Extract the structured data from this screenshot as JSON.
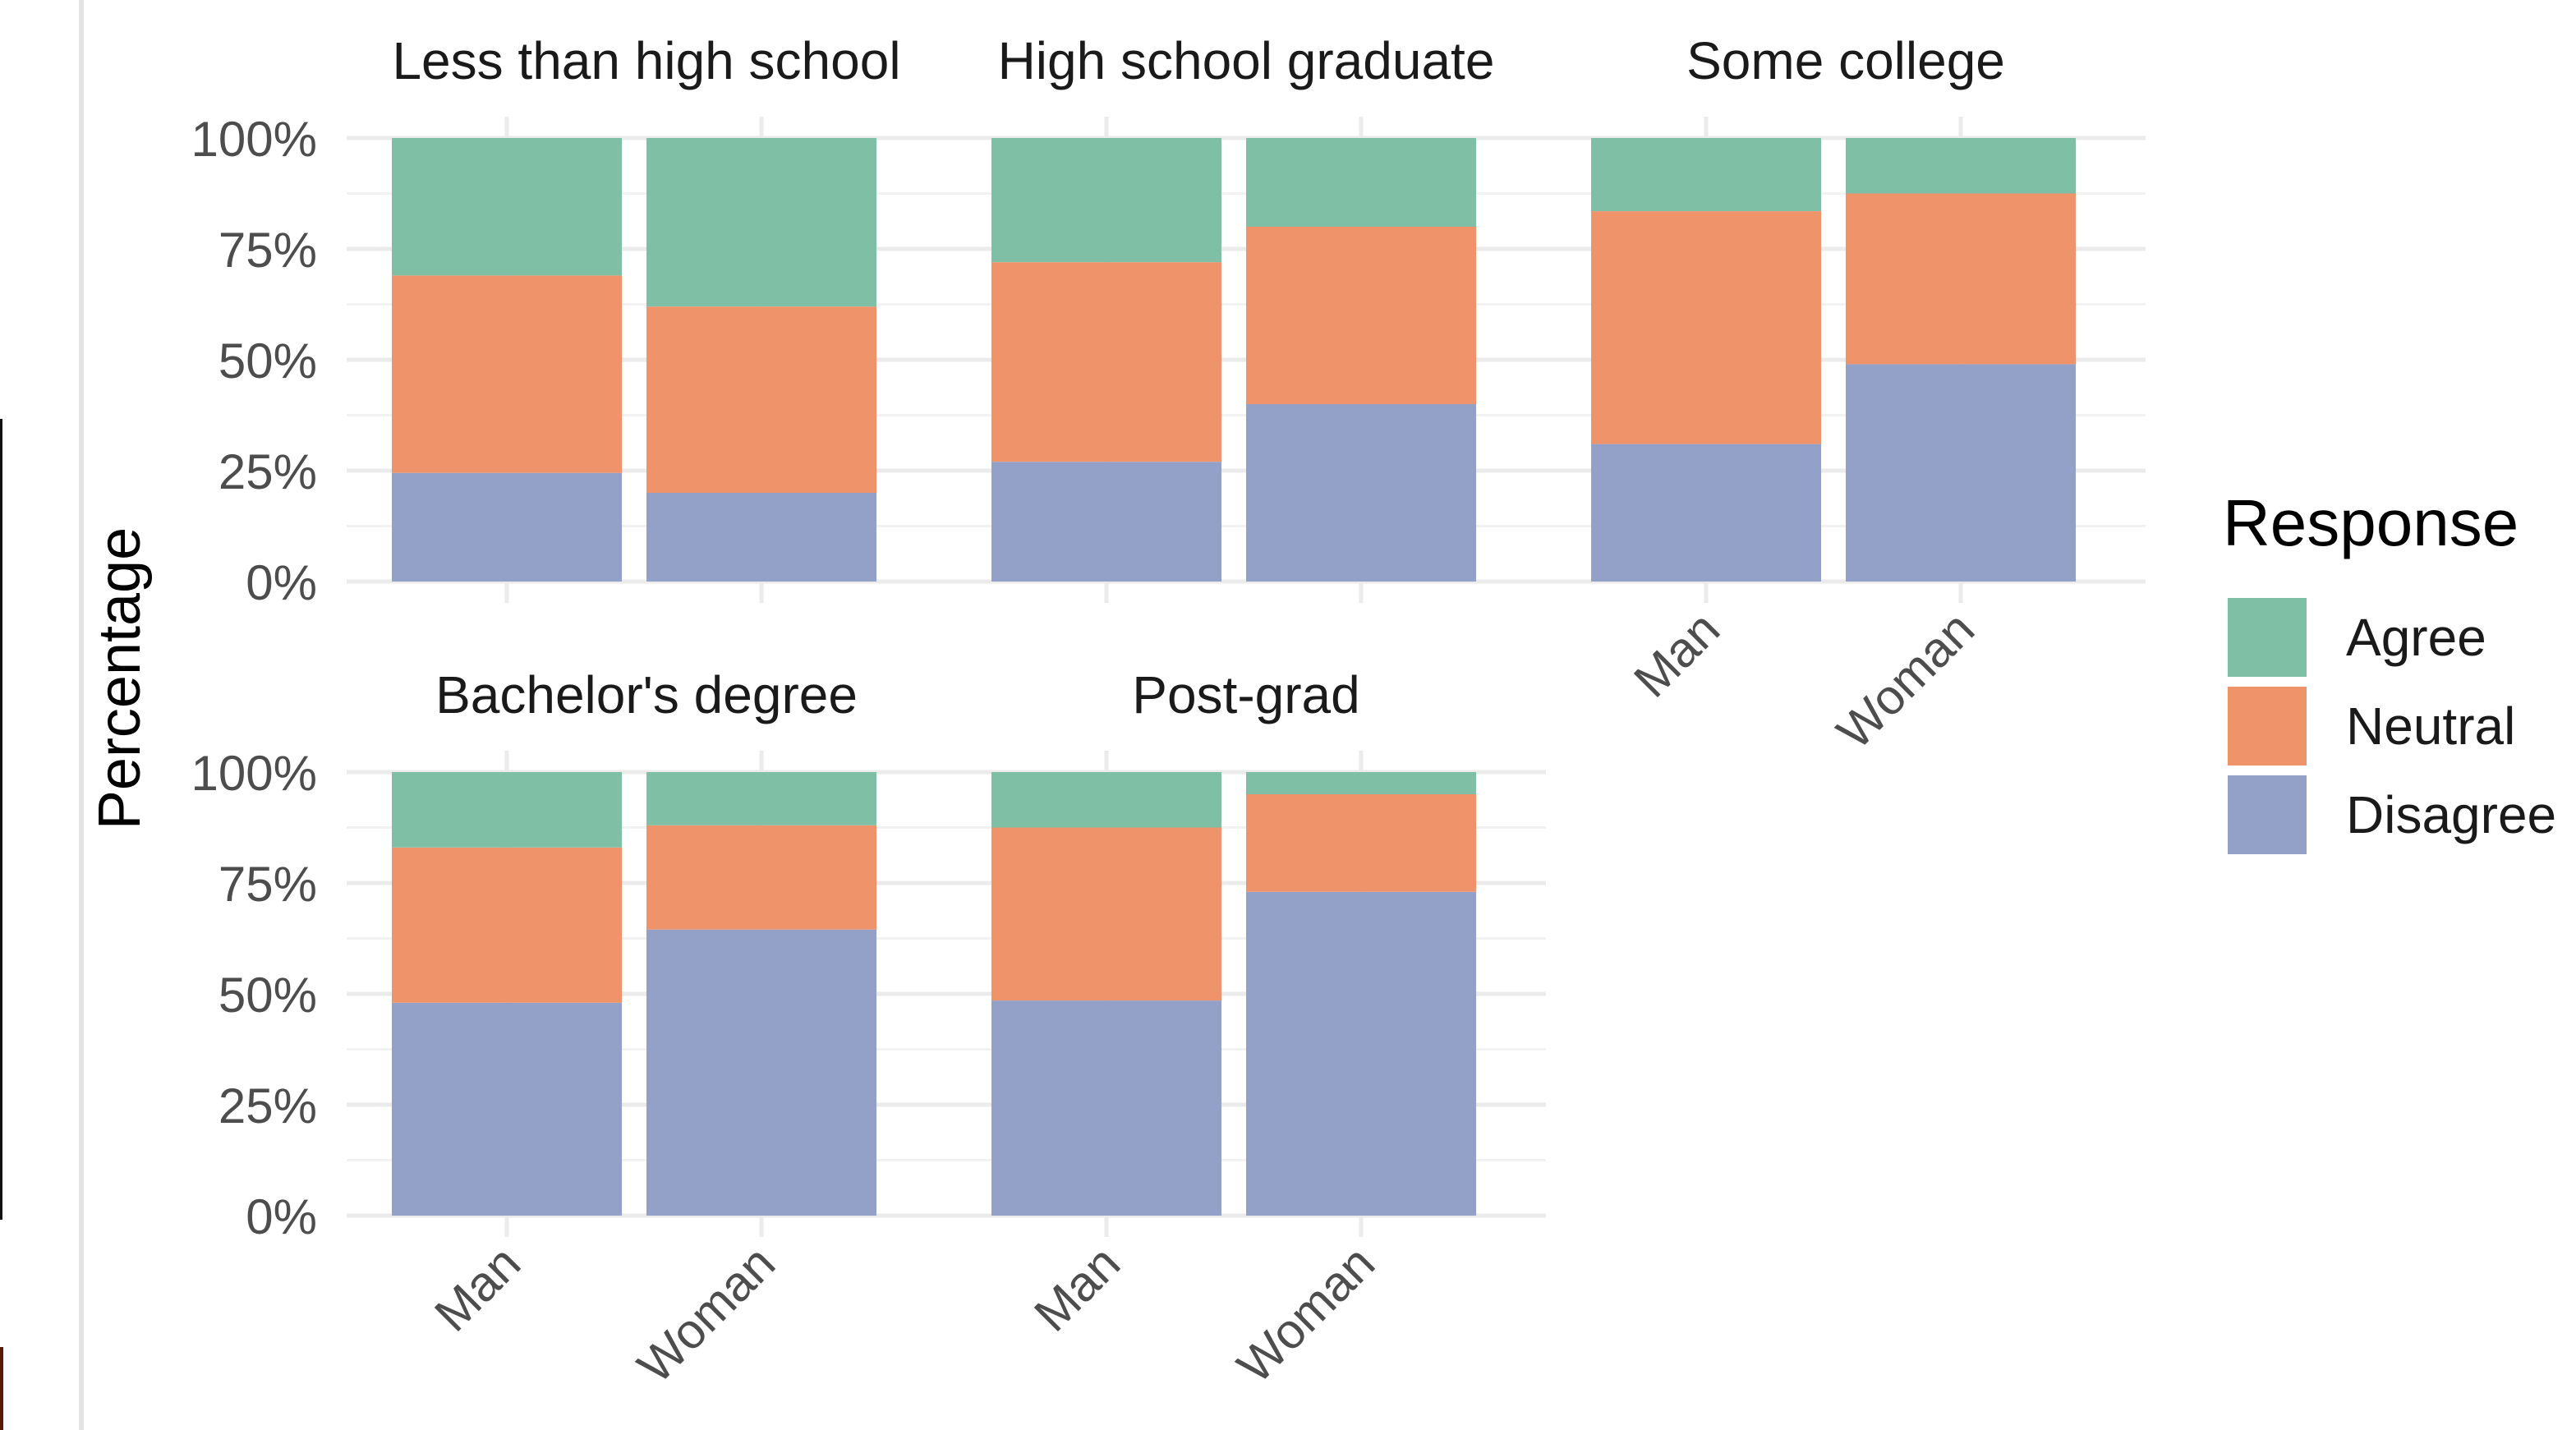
{
  "chart_data": {
    "type": "bar",
    "stacked": true,
    "ylabel": "Percentage",
    "xlabel": "",
    "ylim": [
      0,
      100
    ],
    "y_ticks": [
      "0%",
      "25%",
      "50%",
      "75%",
      "100%"
    ],
    "categories": [
      "Man",
      "Woman"
    ],
    "legend": {
      "title": "Response",
      "placement": "right",
      "entries": [
        {
          "name": "Agree",
          "color": "#7fbfa6"
        },
        {
          "name": "Neutral",
          "color": "#ef936b"
        },
        {
          "name": "Disagree",
          "color": "#93a1c9"
        }
      ]
    },
    "panels": [
      {
        "title": "Less than high school",
        "bars": [
          {
            "category": "Man",
            "Disagree": 24.5,
            "Neutral": 44.5,
            "Agree": 31.0
          },
          {
            "category": "Woman",
            "Disagree": 20.0,
            "Neutral": 42.0,
            "Agree": 38.0
          }
        ]
      },
      {
        "title": "High school graduate",
        "bars": [
          {
            "category": "Man",
            "Disagree": 27.0,
            "Neutral": 45.0,
            "Agree": 28.0
          },
          {
            "category": "Woman",
            "Disagree": 40.0,
            "Neutral": 40.0,
            "Agree": 20.0
          }
        ]
      },
      {
        "title": "Some college",
        "bars": [
          {
            "category": "Man",
            "Disagree": 31.0,
            "Neutral": 52.5,
            "Agree": 16.5
          },
          {
            "category": "Woman",
            "Disagree": 49.0,
            "Neutral": 38.5,
            "Agree": 12.5
          }
        ]
      },
      {
        "title": "Bachelor's degree",
        "bars": [
          {
            "category": "Man",
            "Disagree": 48.0,
            "Neutral": 35.0,
            "Agree": 17.0
          },
          {
            "category": "Woman",
            "Disagree": 64.5,
            "Neutral": 23.5,
            "Agree": 12.0
          }
        ]
      },
      {
        "title": "Post-grad",
        "bars": [
          {
            "category": "Man",
            "Disagree": 48.5,
            "Neutral": 39.0,
            "Agree": 12.5
          },
          {
            "category": "Woman",
            "Disagree": 73.0,
            "Neutral": 22.0,
            "Agree": 5.0
          }
        ]
      }
    ],
    "grid": true,
    "colors": {
      "Agree": "#7fbfa6",
      "Neutral": "#ef936b",
      "Disagree": "#93a1c9"
    }
  }
}
